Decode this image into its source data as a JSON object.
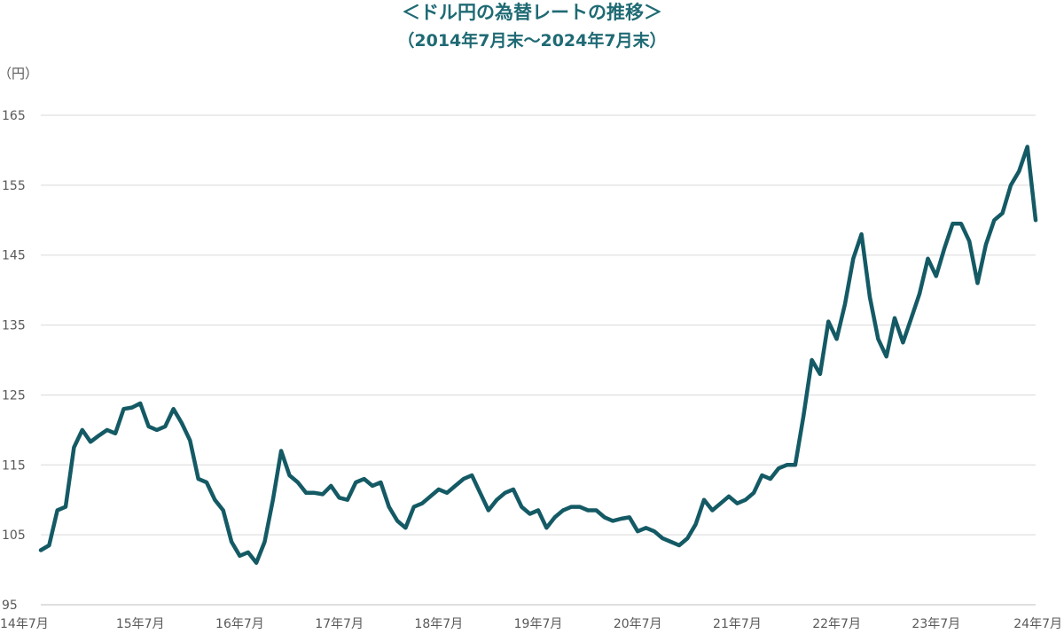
{
  "chart_data": {
    "type": "line",
    "title": "＜ドル円の為替レートの推移＞",
    "subtitle": "（2014年7月末～2024年7月末）",
    "ylabel": "（円）",
    "ylim": [
      95,
      165
    ],
    "yticks": [
      95,
      105,
      115,
      125,
      135,
      145,
      155,
      165
    ],
    "xticks": [
      "14年7月",
      "15年7月",
      "16年7月",
      "17年7月",
      "18年7月",
      "19年7月",
      "20年7月",
      "21年7月",
      "22年7月",
      "23年7月",
      "24年7月"
    ],
    "grid": true,
    "colors": {
      "line": "#145a65",
      "title": "#1f6a74"
    },
    "series": [
      {
        "x": [
          "2014-07",
          "2014-08",
          "2014-09",
          "2014-10",
          "2014-11",
          "2014-12",
          "2015-01",
          "2015-02",
          "2015-03",
          "2015-04",
          "2015-05",
          "2015-06",
          "2015-07",
          "2015-08",
          "2015-09",
          "2015-10",
          "2015-11",
          "2015-12",
          "2016-01",
          "2016-02",
          "2016-03",
          "2016-04",
          "2016-05",
          "2016-06",
          "2016-07",
          "2016-08",
          "2016-09",
          "2016-10",
          "2016-11",
          "2016-12",
          "2017-01",
          "2017-02",
          "2017-03",
          "2017-04",
          "2017-05",
          "2017-06",
          "2017-07",
          "2017-08",
          "2017-09",
          "2017-10",
          "2017-11",
          "2017-12",
          "2018-01",
          "2018-02",
          "2018-03",
          "2018-04",
          "2018-05",
          "2018-06",
          "2018-07",
          "2018-08",
          "2018-09",
          "2018-10",
          "2018-11",
          "2018-12",
          "2019-01",
          "2019-02",
          "2019-03",
          "2019-04",
          "2019-05",
          "2019-06",
          "2019-07",
          "2019-08",
          "2019-09",
          "2019-10",
          "2019-11",
          "2019-12",
          "2020-01",
          "2020-02",
          "2020-03",
          "2020-04",
          "2020-05",
          "2020-06",
          "2020-07",
          "2020-08",
          "2020-09",
          "2020-10",
          "2020-11",
          "2020-12",
          "2021-01",
          "2021-02",
          "2021-03",
          "2021-04",
          "2021-05",
          "2021-06",
          "2021-07",
          "2021-08",
          "2021-09",
          "2021-10",
          "2021-11",
          "2021-12",
          "2022-01",
          "2022-02",
          "2022-03",
          "2022-04",
          "2022-05",
          "2022-06",
          "2022-07",
          "2022-08",
          "2022-09",
          "2022-10",
          "2022-11",
          "2022-12",
          "2023-01",
          "2023-02",
          "2023-03",
          "2023-04",
          "2023-05",
          "2023-06",
          "2023-07",
          "2023-08",
          "2023-09",
          "2023-10",
          "2023-11",
          "2023-12",
          "2024-01",
          "2024-02",
          "2024-03",
          "2024-04",
          "2024-05",
          "2024-06",
          "2024-07"
        ],
        "values": [
          102.8,
          103.5,
          108.5,
          109.0,
          117.5,
          120.0,
          118.3,
          119.2,
          120.0,
          119.5,
          123.0,
          123.2,
          123.8,
          120.5,
          120.0,
          120.5,
          123.0,
          121.0,
          118.5,
          113.0,
          112.5,
          110.0,
          108.5,
          104.0,
          102.0,
          102.5,
          101.0,
          104.0,
          110.0,
          117.0,
          113.5,
          112.5,
          111.0,
          111.0,
          110.8,
          112.0,
          110.3,
          110.0,
          112.5,
          113.0,
          112.0,
          112.5,
          109.0,
          107.0,
          106.0,
          109.0,
          109.5,
          110.5,
          111.5,
          111.0,
          112.0,
          113.0,
          113.5,
          111.0,
          108.5,
          110.0,
          111.0,
          111.5,
          109.0,
          108.0,
          108.5,
          106.0,
          107.5,
          108.5,
          109.0,
          109.0,
          108.5,
          108.5,
          107.5,
          107.0,
          107.3,
          107.5,
          105.5,
          106.0,
          105.5,
          104.5,
          104.0,
          103.5,
          104.5,
          106.5,
          110.0,
          108.5,
          109.5,
          110.5,
          109.5,
          110.0,
          111.0,
          113.5,
          113.0,
          114.5,
          115.0,
          115.0,
          122.0,
          130.0,
          128.0,
          135.5,
          133.0,
          138.0,
          144.5,
          148.0,
          139.0,
          133.0,
          130.5,
          136.0,
          132.5,
          136.0,
          139.5,
          144.5,
          142.0,
          146.0,
          149.5,
          149.5,
          147.0,
          141.0,
          146.5,
          150.0,
          151.0,
          155.0,
          157.0,
          160.5,
          150.0
        ]
      }
    ]
  }
}
